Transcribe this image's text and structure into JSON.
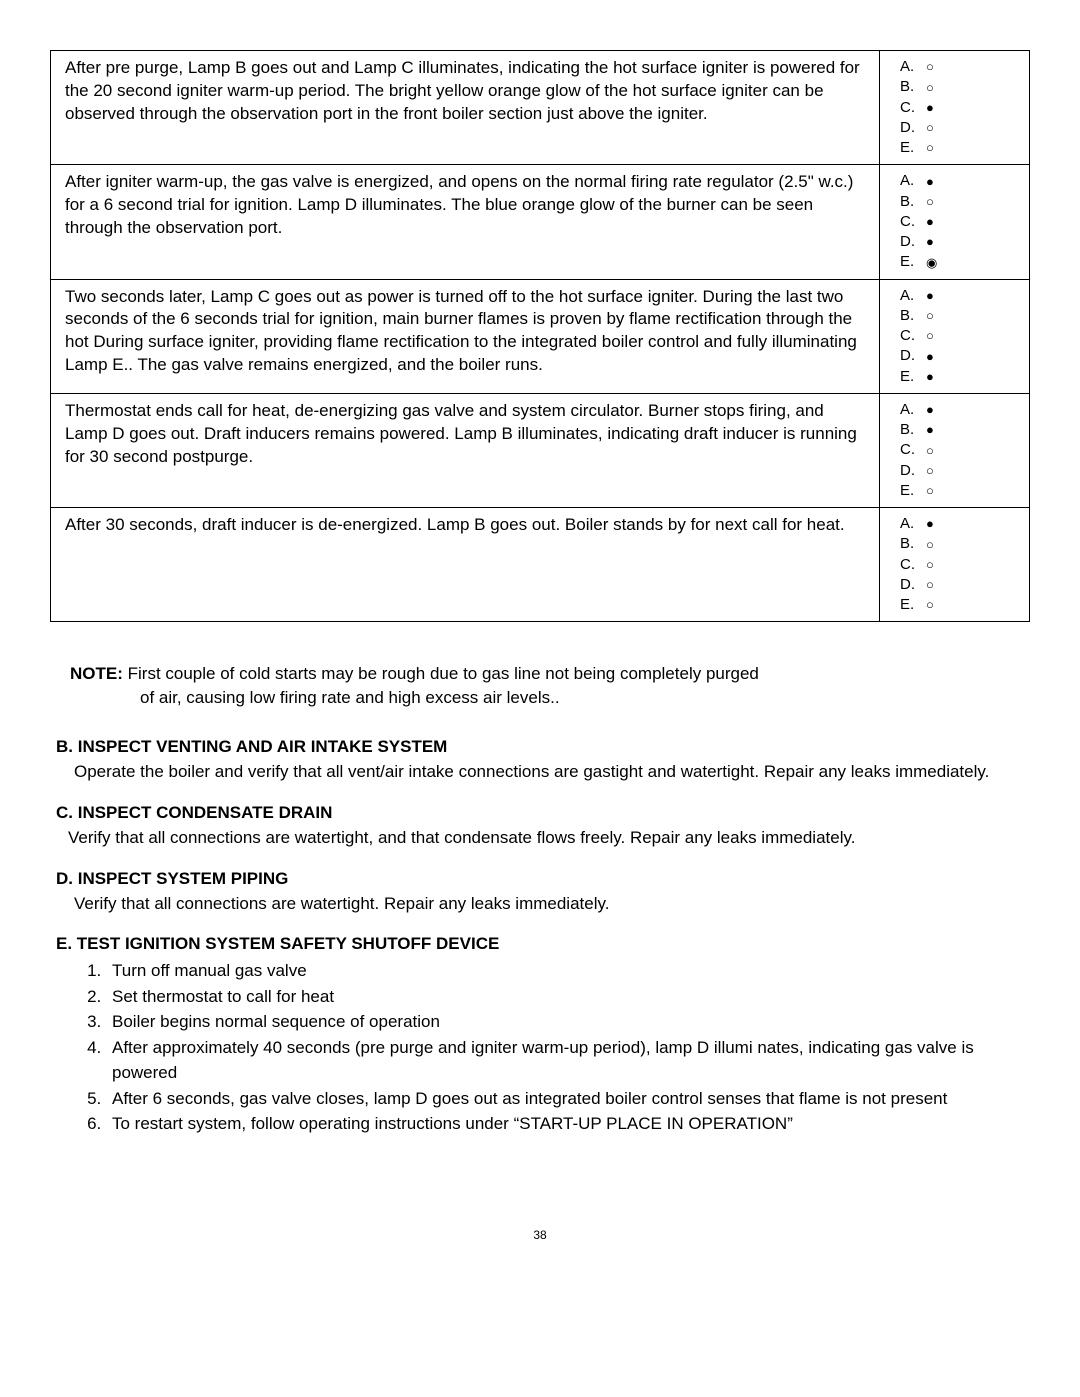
{
  "table": {
    "rows": [
      {
        "text": "After pre purge, Lamp B goes out and Lamp C illuminates, indicating the hot surface igniter is powered for the 20 second igniter warm-up period. The bright yellow orange glow of the hot surface igniter can be observed through the observation port in the front boiler section just above the igniter.",
        "lamps": {
          "A": "off",
          "B": "off",
          "C": "on",
          "D": "off",
          "E": "off"
        }
      },
      {
        "text": "After igniter warm-up, the gas valve is energized, and opens on the normal firing rate regulator (2.5\" w.c.) for a 6 second trial for ignition. Lamp D illuminates. The blue orange glow of the burner can be seen through the observation port.",
        "lamps": {
          "A": "on",
          "B": "off",
          "C": "on",
          "D": "on",
          "E": "ring"
        }
      },
      {
        "text": "Two seconds later, Lamp C goes out as power is turned off to the hot surface igniter. During the last two seconds of the 6 seconds trial for ignition, main burner flames is proven by flame rectification through the hot During surface igniter, providing flame rectification to the integrated boiler control and fully illuminating Lamp E.. The gas valve remains energized, and the boiler runs.",
        "lamps": {
          "A": "on",
          "B": "off",
          "C": "off",
          "D": "on",
          "E": "on"
        }
      },
      {
        "text": "Thermostat ends call for heat, de-energizing gas valve and system circulator. Burner stops firing, and Lamp D goes out. Draft inducers remains powered. Lamp B illuminates, indicating draft inducer is running for 30 second postpurge.",
        "lamps": {
          "A": "on",
          "B": "on",
          "C": "off",
          "D": "off",
          "E": "off"
        }
      },
      {
        "text": "After 30 seconds, draft inducer is de-energized. Lamp B goes out. Boiler stands by for next call for heat.",
        "lamps": {
          "A": "on",
          "B": "off",
          "C": "off",
          "D": "off",
          "E": "off"
        }
      }
    ]
  },
  "lamp_symbols": {
    "on": "●",
    "off": "○",
    "ring": "◉"
  },
  "lamp_order": [
    "A",
    "B",
    "C",
    "D",
    "E"
  ],
  "note": {
    "label": "NOTE:",
    "line1": "First couple of cold starts may be rough due to gas line not being completely purged",
    "line2": "of air, causing low firing rate and high excess air levels.."
  },
  "sections": {
    "b": {
      "heading": "B. INSPECT VENTING AND AIR INTAKE SYSTEM",
      "body": "Operate the boiler and verify that all vent/air intake connections are gastight and watertight. Repair any leaks immediately."
    },
    "c": {
      "heading": "C. INSPECT CONDENSATE DRAIN",
      "body": "Verify that all connections are watertight, and that condensate flows freely. Repair any leaks immediately."
    },
    "d": {
      "heading": "D. INSPECT SYSTEM PIPING",
      "body": "Verify that all connections are watertight. Repair any leaks immediately."
    },
    "e": {
      "heading": "E. TEST IGNITION SYSTEM SAFETY SHUTOFF DEVICE",
      "steps": [
        "Turn off manual gas valve",
        "Set thermostat to call for heat",
        "Boiler begins normal sequence of operation",
        "After approximately 40 seconds (pre purge and igniter warm-up period), lamp D illumi nates, indicating gas valve is powered",
        "After 6 seconds, gas valve closes, lamp D goes out as integrated boiler control senses that flame is not present",
        "To restart system, follow operating instructions under “START-UP PLACE IN OPERATION”"
      ]
    }
  },
  "page_number": "38"
}
